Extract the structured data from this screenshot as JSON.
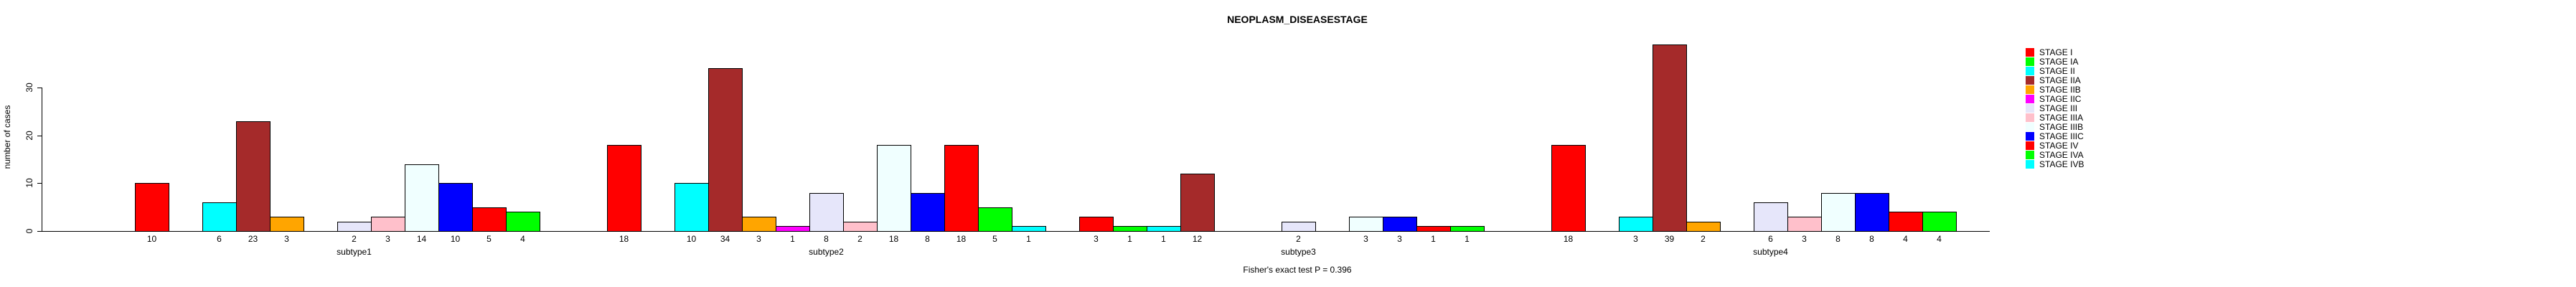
{
  "figure": {
    "title": "NEOPLASM_DISEASESTAGE",
    "footnote": "Fisher's exact test P = 0.396"
  },
  "chart_data": {
    "type": "bar",
    "title": "NEOPLASM_DISEASESTAGE",
    "xlabel": "",
    "ylabel": "number of cases",
    "ylim": [
      0,
      39
    ],
    "yticks": [
      0,
      10,
      20,
      30
    ],
    "grid": false,
    "legend_position": "right",
    "bar_borders": "black",
    "value_labels_shown_for_nonzero_bars": true,
    "annotation": "Fisher's exact test P = 0.396",
    "categories": [
      "subtype1",
      "subtype2",
      "subtype3",
      "subtype4"
    ],
    "series": [
      {
        "name": "STAGE I",
        "color": "#FF0000",
        "values": [
          10,
          18,
          3,
          18
        ]
      },
      {
        "name": "STAGE IA",
        "color": "#00FF00",
        "values": [
          0,
          0,
          1,
          0
        ]
      },
      {
        "name": "STAGE II",
        "color": "#00FFFF",
        "values": [
          6,
          10,
          1,
          3
        ]
      },
      {
        "name": "STAGE IIA",
        "color": "#A52A2A",
        "values": [
          23,
          34,
          12,
          39
        ]
      },
      {
        "name": "STAGE IIB",
        "color": "#FFA500",
        "values": [
          3,
          3,
          0,
          2
        ]
      },
      {
        "name": "STAGE IIC",
        "color": "#FF00FF",
        "values": [
          0,
          1,
          0,
          0
        ]
      },
      {
        "name": "STAGE III",
        "color": "#E6E6FA",
        "values": [
          2,
          8,
          2,
          6
        ]
      },
      {
        "name": "STAGE IIIA",
        "color": "#FFC0CB",
        "values": [
          3,
          2,
          0,
          3
        ]
      },
      {
        "name": "STAGE IIIB",
        "color": "#F0FFFF",
        "values": [
          14,
          18,
          3,
          8
        ]
      },
      {
        "name": "STAGE IIIC",
        "color": "#0000FF",
        "values": [
          10,
          8,
          3,
          8
        ]
      },
      {
        "name": "STAGE IV",
        "color": "#FF0000",
        "values": [
          5,
          18,
          1,
          4
        ]
      },
      {
        "name": "STAGE IVA",
        "color": "#00FF00",
        "values": [
          4,
          5,
          1,
          4
        ]
      },
      {
        "name": "STAGE IVB",
        "color": "#00FFFF",
        "values": [
          0,
          1,
          0,
          0
        ]
      }
    ]
  }
}
